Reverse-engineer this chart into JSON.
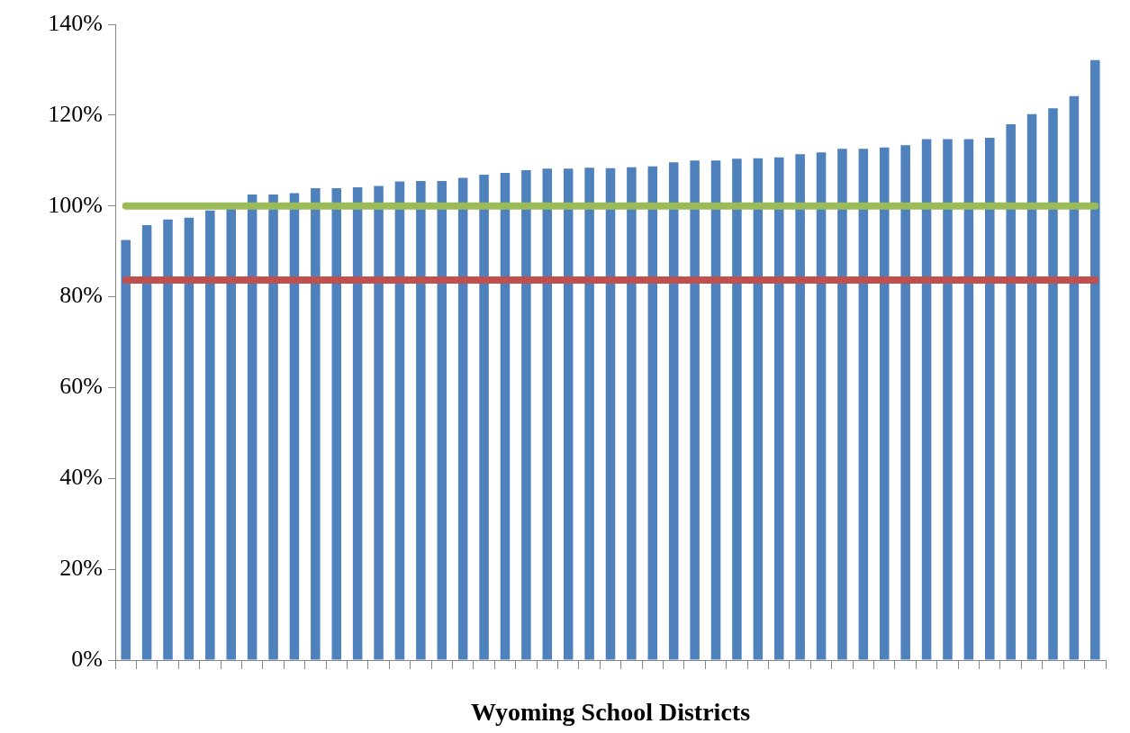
{
  "chart_data": {
    "type": "bar",
    "xlabel": "Wyoming School Districts",
    "categories": [
      null,
      null,
      null,
      null,
      null,
      null,
      null,
      null,
      null,
      null,
      null,
      null,
      null,
      null,
      null,
      null,
      null,
      null,
      null,
      null,
      null,
      null,
      null,
      null,
      null,
      null,
      null,
      null,
      null,
      null,
      null,
      null,
      null,
      null,
      null,
      null,
      null,
      null,
      null,
      null,
      null,
      null,
      null,
      null,
      null,
      null,
      null
    ],
    "values": [
      92.5,
      95.8,
      97.0,
      97.4,
      99.0,
      99.4,
      102.5,
      102.5,
      102.8,
      103.9,
      103.9,
      104.1,
      104.4,
      105.4,
      105.5,
      105.5,
      106.2,
      106.9,
      107.3,
      107.9,
      108.2,
      108.2,
      108.4,
      108.3,
      108.5,
      108.7,
      109.6,
      110.0,
      110.0,
      110.4,
      110.5,
      110.7,
      111.4,
      111.8,
      112.6,
      112.6,
      112.9,
      113.4,
      114.7,
      114.7,
      114.7,
      115.0,
      118.0,
      120.2,
      121.5,
      124.2,
      132.1
    ],
    "color": "#4f81bd",
    "ylim": [
      0,
      140
    ],
    "yticks": [
      {
        "value": 0,
        "label": "0%"
      },
      {
        "value": 20,
        "label": "20%"
      },
      {
        "value": 40,
        "label": "40%"
      },
      {
        "value": 60,
        "label": "60%"
      },
      {
        "value": 80,
        "label": "80%"
      },
      {
        "value": 100,
        "label": "100%"
      },
      {
        "value": 120,
        "label": "120%"
      },
      {
        "value": 140,
        "label": "140%"
      }
    ],
    "ref_lines": [
      {
        "axis": "y",
        "value": 100,
        "color": "#9bbb59"
      },
      {
        "axis": "y",
        "value": 83.7,
        "color": "#c0504d"
      }
    ],
    "legend": false
  }
}
